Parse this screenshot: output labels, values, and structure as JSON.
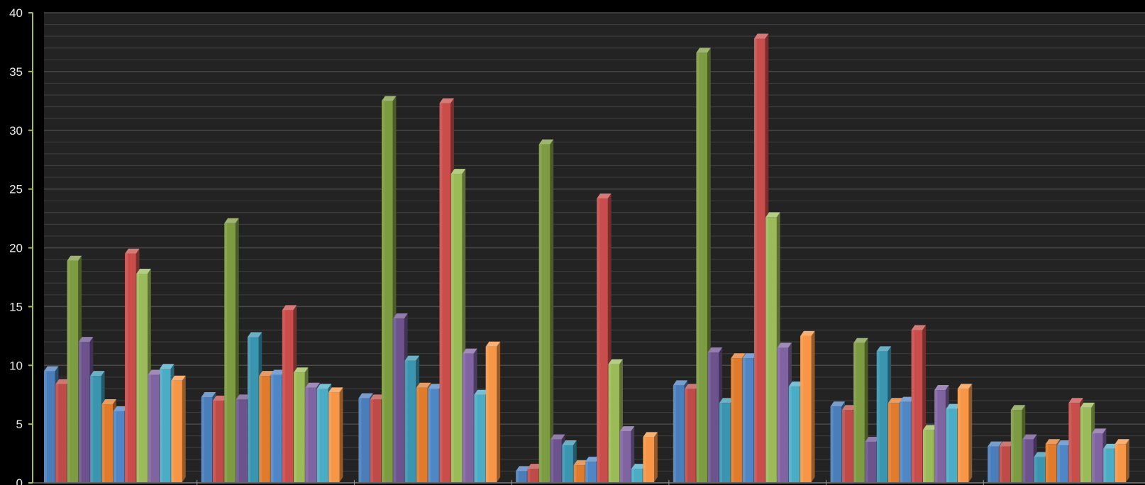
{
  "chart_data": {
    "type": "bar",
    "style": "3d-clustered-column",
    "ylim": [
      0,
      40
    ],
    "y_ticks": [
      0,
      5,
      10,
      15,
      20,
      25,
      30,
      35,
      40
    ],
    "grid": true,
    "background_color": "#232323",
    "categories": [
      "",
      "",
      "",
      "",
      "",
      "",
      ""
    ],
    "series": [
      {
        "color": "#4a7ebb",
        "values": [
          9.5,
          7.3,
          7.2,
          1.0,
          8.3,
          6.5,
          3.1
        ]
      },
      {
        "color": "#be4b48",
        "values": [
          8.4,
          7.0,
          7.1,
          1.2,
          8.0,
          6.2,
          3.1
        ]
      },
      {
        "color": "#7d9b41",
        "values": [
          18.9,
          22.1,
          32.5,
          28.8,
          36.6,
          11.9,
          6.2
        ]
      },
      {
        "color": "#6c538e",
        "values": [
          12.0,
          7.1,
          14.0,
          3.7,
          11.1,
          3.5,
          3.7
        ]
      },
      {
        "color": "#3a95b0",
        "values": [
          9.1,
          12.4,
          10.4,
          3.2,
          6.8,
          11.2,
          2.2
        ]
      },
      {
        "color": "#e07b2c",
        "values": [
          6.7,
          9.1,
          8.1,
          1.5,
          10.6,
          6.8,
          3.3
        ]
      },
      {
        "color": "#4f86c6",
        "values": [
          6.1,
          9.2,
          8.0,
          1.8,
          10.6,
          6.9,
          3.2
        ]
      },
      {
        "color": "#c84d4b",
        "values": [
          19.5,
          14.7,
          32.3,
          24.2,
          37.8,
          13.0,
          6.8
        ]
      },
      {
        "color": "#9bbb59",
        "values": [
          17.8,
          9.4,
          26.3,
          10.1,
          22.6,
          4.5,
          6.4
        ]
      },
      {
        "color": "#8064a2",
        "values": [
          9.2,
          8.1,
          11.0,
          4.4,
          11.5,
          7.9,
          4.2
        ]
      },
      {
        "color": "#4bacc6",
        "values": [
          9.7,
          8.0,
          7.5,
          1.2,
          8.2,
          6.3,
          2.9
        ]
      },
      {
        "color": "#f79646",
        "values": [
          8.7,
          7.7,
          11.6,
          3.9,
          12.5,
          8.0,
          3.3
        ]
      }
    ]
  }
}
